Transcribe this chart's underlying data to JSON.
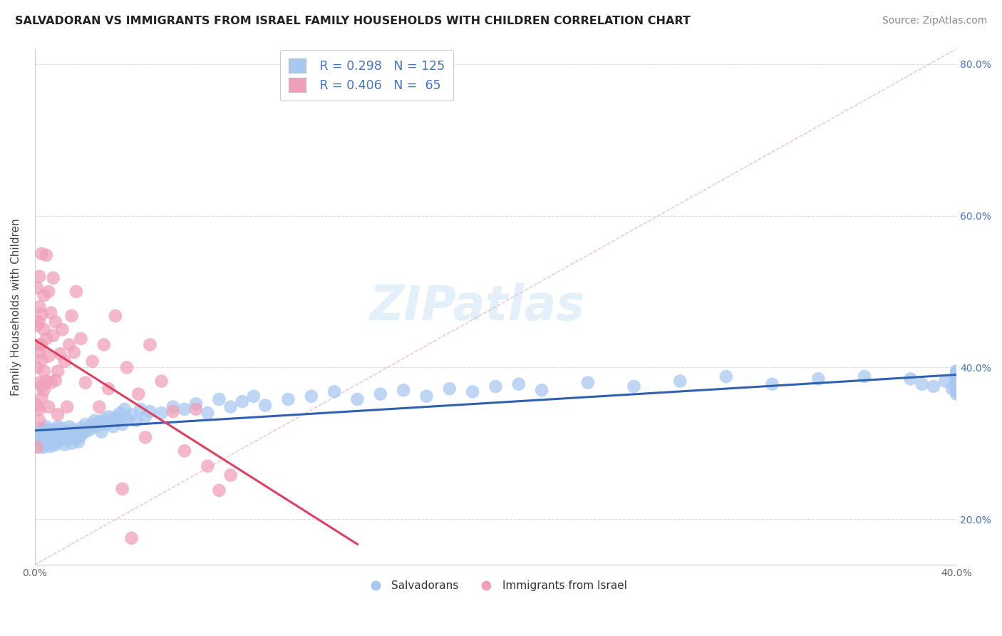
{
  "title": "SALVADORAN VS IMMIGRANTS FROM ISRAEL FAMILY HOUSEHOLDS WITH CHILDREN CORRELATION CHART",
  "source": "Source: ZipAtlas.com",
  "ylabel": "Family Households with Children",
  "color_blue": "#a8c8f0",
  "color_blue_line": "#3060b0",
  "color_pink": "#f0a0b8",
  "color_pink_line": "#e04060",
  "color_diag": "#e8b0b8",
  "watermark": "ZIPatlas",
  "legend_r1": "R = 0.298",
  "legend_n1": "N = 125",
  "legend_r2": "R = 0.406",
  "legend_n2": "N =  65",
  "xlim": [
    0.0,
    0.4
  ],
  "ylim": [
    0.14,
    0.82
  ],
  "yticks": [
    0.2,
    0.4,
    0.6,
    0.8
  ],
  "ytick_labels": [
    "20.0%",
    "40.0%",
    "60.0%",
    "80.0%"
  ],
  "title_fontsize": 11.5,
  "source_fontsize": 10,
  "ylabel_fontsize": 11,
  "tick_fontsize": 10,
  "blue_x": [
    0.001,
    0.001,
    0.002,
    0.002,
    0.002,
    0.003,
    0.003,
    0.003,
    0.004,
    0.004,
    0.004,
    0.005,
    0.005,
    0.005,
    0.006,
    0.006,
    0.006,
    0.007,
    0.007,
    0.007,
    0.008,
    0.008,
    0.009,
    0.009,
    0.009,
    0.01,
    0.01,
    0.01,
    0.011,
    0.011,
    0.012,
    0.012,
    0.013,
    0.013,
    0.014,
    0.014,
    0.015,
    0.015,
    0.016,
    0.016,
    0.017,
    0.017,
    0.018,
    0.018,
    0.019,
    0.019,
    0.02,
    0.02,
    0.021,
    0.022,
    0.022,
    0.023,
    0.024,
    0.025,
    0.026,
    0.027,
    0.028,
    0.029,
    0.03,
    0.031,
    0.032,
    0.033,
    0.034,
    0.035,
    0.036,
    0.037,
    0.038,
    0.039,
    0.04,
    0.042,
    0.044,
    0.046,
    0.048,
    0.05,
    0.055,
    0.06,
    0.065,
    0.07,
    0.075,
    0.08,
    0.085,
    0.09,
    0.095,
    0.1,
    0.11,
    0.12,
    0.13,
    0.14,
    0.15,
    0.16,
    0.17,
    0.18,
    0.19,
    0.2,
    0.21,
    0.22,
    0.24,
    0.26,
    0.28,
    0.3,
    0.32,
    0.34,
    0.36,
    0.38,
    0.385,
    0.39,
    0.395,
    0.398,
    0.4,
    0.4,
    0.4,
    0.4,
    0.4,
    0.4,
    0.4,
    0.4,
    0.4,
    0.4,
    0.4,
    0.4,
    0.4,
    0.4,
    0.4,
    0.4,
    0.4
  ],
  "blue_y": [
    0.3,
    0.31,
    0.295,
    0.315,
    0.305,
    0.31,
    0.3,
    0.32,
    0.305,
    0.295,
    0.315,
    0.308,
    0.298,
    0.322,
    0.312,
    0.302,
    0.318,
    0.306,
    0.316,
    0.296,
    0.31,
    0.3,
    0.308,
    0.318,
    0.298,
    0.312,
    0.302,
    0.322,
    0.315,
    0.305,
    0.31,
    0.32,
    0.308,
    0.298,
    0.315,
    0.305,
    0.312,
    0.322,
    0.31,
    0.3,
    0.318,
    0.308,
    0.315,
    0.305,
    0.312,
    0.302,
    0.32,
    0.31,
    0.318,
    0.315,
    0.325,
    0.32,
    0.318,
    0.325,
    0.33,
    0.322,
    0.328,
    0.315,
    0.332,
    0.325,
    0.335,
    0.328,
    0.322,
    0.335,
    0.33,
    0.34,
    0.325,
    0.345,
    0.332,
    0.338,
    0.33,
    0.345,
    0.335,
    0.342,
    0.34,
    0.348,
    0.345,
    0.352,
    0.34,
    0.358,
    0.348,
    0.355,
    0.362,
    0.35,
    0.358,
    0.362,
    0.368,
    0.358,
    0.365,
    0.37,
    0.362,
    0.372,
    0.368,
    0.375,
    0.378,
    0.37,
    0.38,
    0.375,
    0.382,
    0.388,
    0.378,
    0.385,
    0.388,
    0.385,
    0.378,
    0.375,
    0.382,
    0.372,
    0.388,
    0.395,
    0.382,
    0.37,
    0.39,
    0.378,
    0.385,
    0.395,
    0.365,
    0.388,
    0.372,
    0.38,
    0.392,
    0.368,
    0.385,
    0.375,
    0.39
  ],
  "pink_x": [
    0.001,
    0.001,
    0.001,
    0.001,
    0.001,
    0.002,
    0.002,
    0.002,
    0.002,
    0.002,
    0.002,
    0.002,
    0.002,
    0.003,
    0.003,
    0.003,
    0.003,
    0.003,
    0.003,
    0.004,
    0.004,
    0.004,
    0.004,
    0.005,
    0.005,
    0.005,
    0.006,
    0.006,
    0.006,
    0.007,
    0.007,
    0.008,
    0.008,
    0.009,
    0.009,
    0.01,
    0.01,
    0.011,
    0.012,
    0.013,
    0.014,
    0.015,
    0.016,
    0.017,
    0.018,
    0.02,
    0.022,
    0.025,
    0.028,
    0.03,
    0.032,
    0.035,
    0.038,
    0.04,
    0.042,
    0.045,
    0.048,
    0.05,
    0.055,
    0.06,
    0.065,
    0.07,
    0.075,
    0.08,
    0.085
  ],
  "pink_y": [
    0.295,
    0.455,
    0.4,
    0.505,
    0.35,
    0.48,
    0.43,
    0.38,
    0.52,
    0.345,
    0.42,
    0.46,
    0.33,
    0.47,
    0.41,
    0.55,
    0.375,
    0.43,
    0.36,
    0.45,
    0.395,
    0.495,
    0.37,
    0.438,
    0.382,
    0.548,
    0.415,
    0.5,
    0.348,
    0.472,
    0.38,
    0.442,
    0.518,
    0.383,
    0.46,
    0.395,
    0.338,
    0.418,
    0.45,
    0.408,
    0.348,
    0.43,
    0.468,
    0.42,
    0.5,
    0.438,
    0.38,
    0.408,
    0.348,
    0.43,
    0.372,
    0.468,
    0.24,
    0.4,
    0.175,
    0.365,
    0.308,
    0.43,
    0.382,
    0.342,
    0.29,
    0.345,
    0.27,
    0.238,
    0.258
  ]
}
